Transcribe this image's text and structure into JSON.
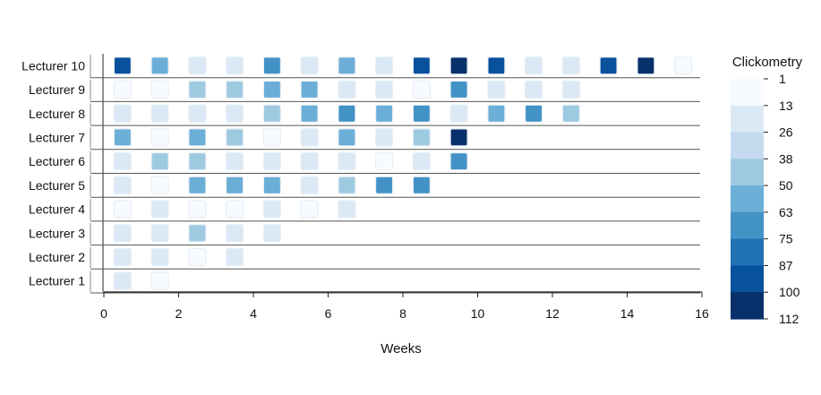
{
  "chart_data": {
    "type": "heatmap",
    "xlabel": "Weeks",
    "x_ticks": [
      0,
      2,
      4,
      6,
      8,
      10,
      12,
      14,
      16
    ],
    "xlim": [
      0,
      16
    ],
    "rows": [
      "Lecturer 10",
      "Lecturer 9",
      "Lecturer 8",
      "Lecturer 7",
      "Lecturer 6",
      "Lecturer 5",
      "Lecturer 4",
      "Lecturer 3",
      "Lecturer 2",
      "Lecturer 1"
    ],
    "week_centers": [
      0.5,
      1.5,
      2.5,
      3.5,
      4.5,
      5.5,
      6.5,
      7.5,
      8.5,
      9.5,
      10.5,
      11.5,
      12.5,
      13.5,
      14.5,
      15.5
    ],
    "values": [
      [
        88,
        52,
        25,
        25,
        70,
        25,
        55,
        25,
        98,
        100,
        88,
        18,
        15,
        88,
        112,
        5
      ],
      [
        5,
        5,
        42,
        42,
        55,
        55,
        18,
        25,
        3,
        68,
        25,
        18,
        25
      ],
      [
        18,
        25,
        18,
        18,
        42,
        55,
        70,
        55,
        70,
        25,
        55,
        70,
        42
      ],
      [
        55,
        5,
        55,
        42,
        5,
        25,
        55,
        18,
        42,
        112
      ],
      [
        18,
        42,
        42,
        25,
        25,
        18,
        18,
        5,
        18,
        65
      ],
      [
        25,
        5,
        55,
        55,
        55,
        18,
        42,
        70,
        70
      ],
      [
        5,
        25,
        5,
        5,
        18,
        5,
        18
      ],
      [
        25,
        18,
        42,
        18,
        18
      ],
      [
        25,
        25,
        5,
        18
      ],
      [
        18,
        5
      ]
    ],
    "colorbar": {
      "title": "Clickometry",
      "ticks": [
        "1",
        "13",
        "26",
        "38",
        "50",
        "63",
        "75",
        "87",
        "100",
        "112"
      ],
      "min": 1,
      "max": 112,
      "colors": [
        "#f7fbff",
        "#dbe9f6",
        "#c5daee",
        "#9ecae1",
        "#6baed6",
        "#4292c6",
        "#2171b5",
        "#08519c",
        "#08306b"
      ]
    }
  }
}
